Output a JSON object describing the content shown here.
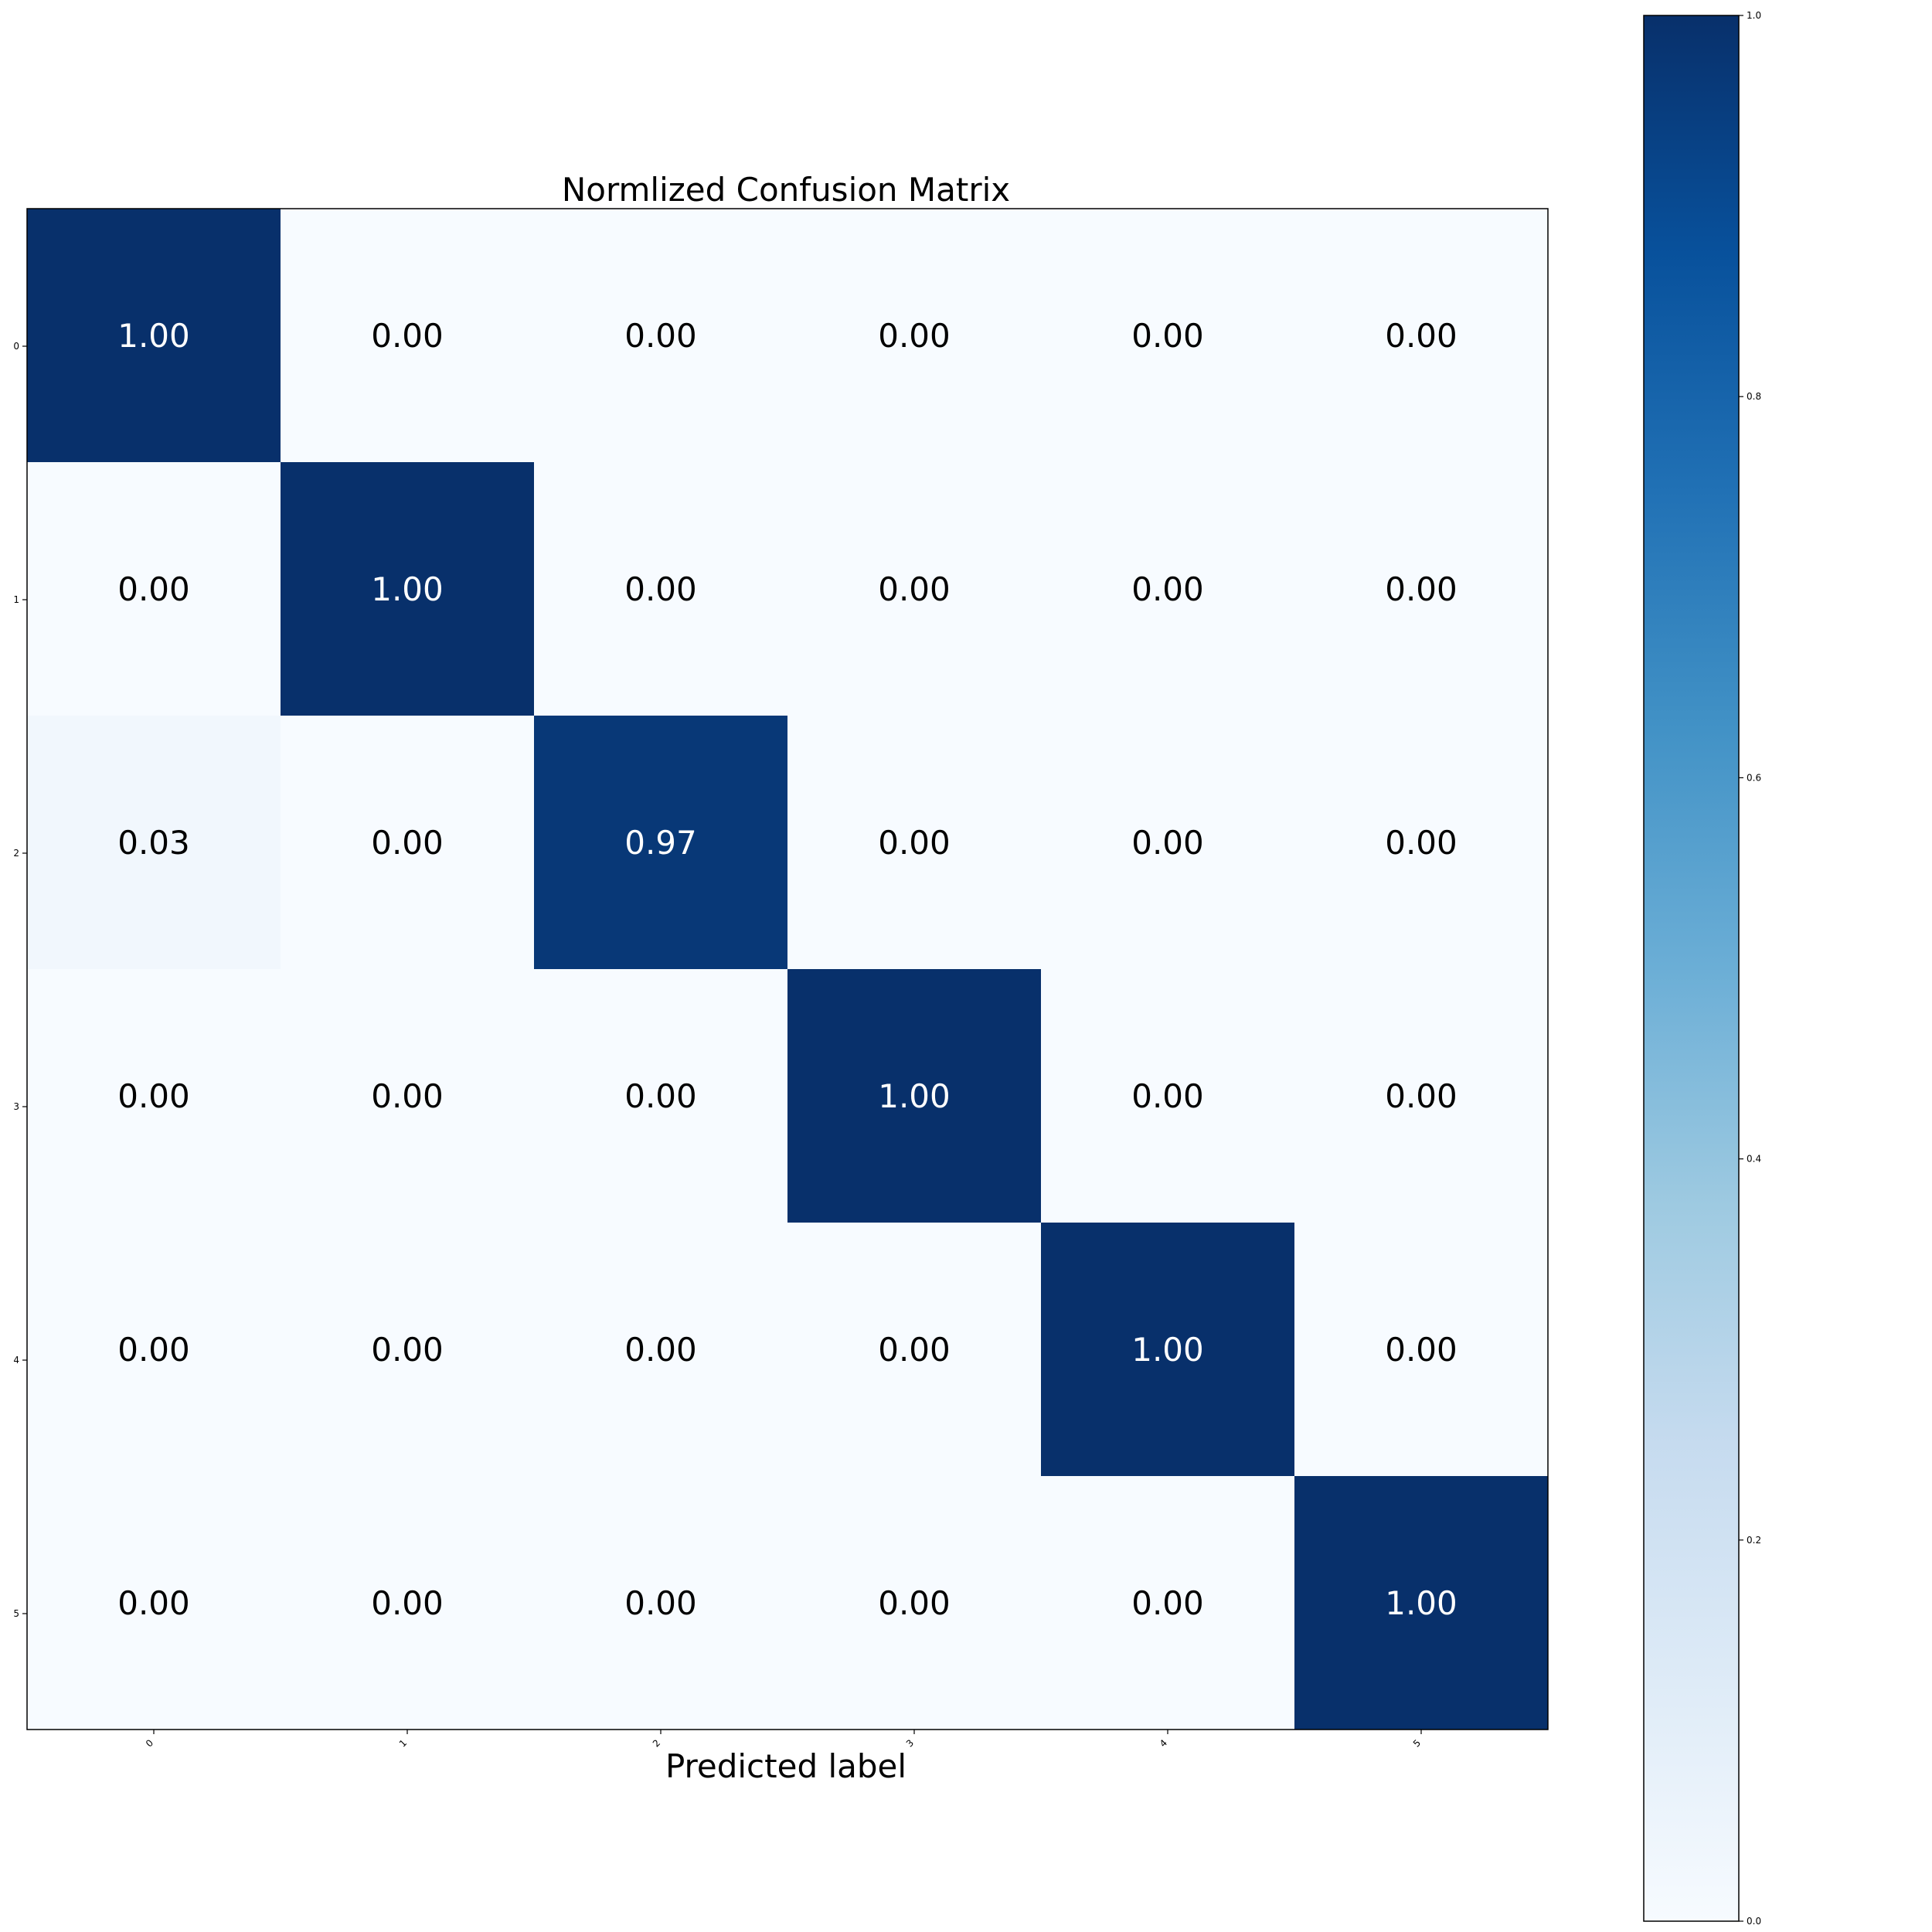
{
  "chart_data": {
    "type": "heatmap",
    "title": "Normlized Confusion Matrix",
    "xlabel": "Predicted label",
    "ylabel": "",
    "x_ticks": [
      "0",
      "1",
      "2",
      "3",
      "4",
      "5"
    ],
    "y_ticks": [
      "0",
      "1",
      "2",
      "3",
      "4",
      "5"
    ],
    "matrix": [
      [
        1.0,
        0.0,
        0.0,
        0.0,
        0.0,
        0.0
      ],
      [
        0.0,
        1.0,
        0.0,
        0.0,
        0.0,
        0.0
      ],
      [
        0.03,
        0.0,
        0.97,
        0.0,
        0.0,
        0.0
      ],
      [
        0.0,
        0.0,
        0.0,
        1.0,
        0.0,
        0.0
      ],
      [
        0.0,
        0.0,
        0.0,
        0.0,
        1.0,
        0.0
      ],
      [
        0.0,
        0.0,
        0.0,
        0.0,
        0.0,
        1.0
      ]
    ],
    "value_format": "2 decimals",
    "colormap": "Blues",
    "colormap_low": "#f7fbff",
    "colormap_high": "#08306b",
    "colorbar": {
      "range": [
        0.0,
        1.0
      ],
      "ticks": [
        "0.0",
        "0.2",
        "0.4",
        "0.6",
        "0.8",
        "1.0"
      ],
      "placement": "right"
    },
    "grid": false,
    "text_color_dark": "#000000",
    "text_color_light": "#ffffff"
  }
}
